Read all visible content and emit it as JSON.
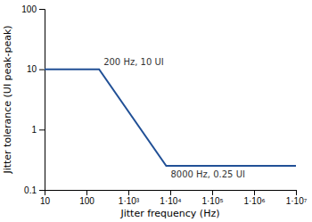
{
  "chart_data": {
    "type": "line",
    "log": true,
    "grid": false,
    "x_label": "Jitter frequency (Hz)",
    "y_label": "Jitter tolerance (UI peak-peak)",
    "x": [
      10,
      200,
      8000,
      10000000
    ],
    "series": [
      {
        "color": "#215096",
        "values": [
          10,
          10,
          0.25,
          0.25
        ]
      }
    ],
    "xlim": [
      10,
      10000000
    ],
    "ylim": [
      0.1,
      100
    ],
    "xticks": [
      10,
      100,
      {
        "value": 1000,
        "label": "1·10³"
      },
      {
        "value": 10000,
        "label": "1·10⁴"
      },
      {
        "value": 100000,
        "label": "1·10⁵"
      },
      {
        "value": 1000000,
        "label": "1·10⁶"
      },
      {
        "value": 10000000,
        "label": "1·10⁷"
      }
    ],
    "yticks": [
      0.1,
      1,
      10,
      100
    ],
    "annotations": [
      {
        "text": "200 Hz, 10 UI",
        "x": 200,
        "y": 10
      },
      {
        "text": "8000 Hz, 0.25 UI",
        "x": 8000,
        "y": 0.25
      }
    ]
  }
}
